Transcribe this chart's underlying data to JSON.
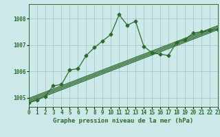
{
  "title": "Graphe pression niveau de la mer (hPa)",
  "bg_color": "#cce8e8",
  "plot_bg_color": "#cce8e8",
  "grid_color": "#aacccc",
  "line_color": "#2d6a2d",
  "xlim": [
    0,
    23
  ],
  "ylim": [
    1004.65,
    1008.55
  ],
  "yticks": [
    1005,
    1006,
    1007,
    1008
  ],
  "xticks": [
    0,
    1,
    2,
    3,
    4,
    5,
    6,
    7,
    8,
    9,
    10,
    11,
    12,
    13,
    14,
    15,
    16,
    17,
    18,
    19,
    20,
    21,
    22,
    23
  ],
  "main_series": [
    1004.8,
    1004.9,
    1005.05,
    1005.45,
    1005.5,
    1006.05,
    1006.1,
    1006.6,
    1006.9,
    1007.15,
    1007.4,
    1008.15,
    1007.75,
    1007.9,
    1006.95,
    1006.7,
    1006.65,
    1006.6,
    1007.1,
    1007.2,
    1007.45,
    1007.5,
    1007.55,
    1007.6
  ],
  "trend_lines": [
    {
      "x0": 0,
      "y0": 1004.82,
      "x1": 23,
      "y1": 1007.58
    },
    {
      "x0": 0,
      "y0": 1004.87,
      "x1": 23,
      "y1": 1007.63
    },
    {
      "x0": 0,
      "y0": 1004.92,
      "x1": 23,
      "y1": 1007.68
    },
    {
      "x0": 0,
      "y0": 1004.97,
      "x1": 23,
      "y1": 1007.73
    }
  ],
  "marker_size": 2.5,
  "linewidth": 0.9,
  "fontsize_title": 6.5,
  "fontsize_ticks": 5.5
}
